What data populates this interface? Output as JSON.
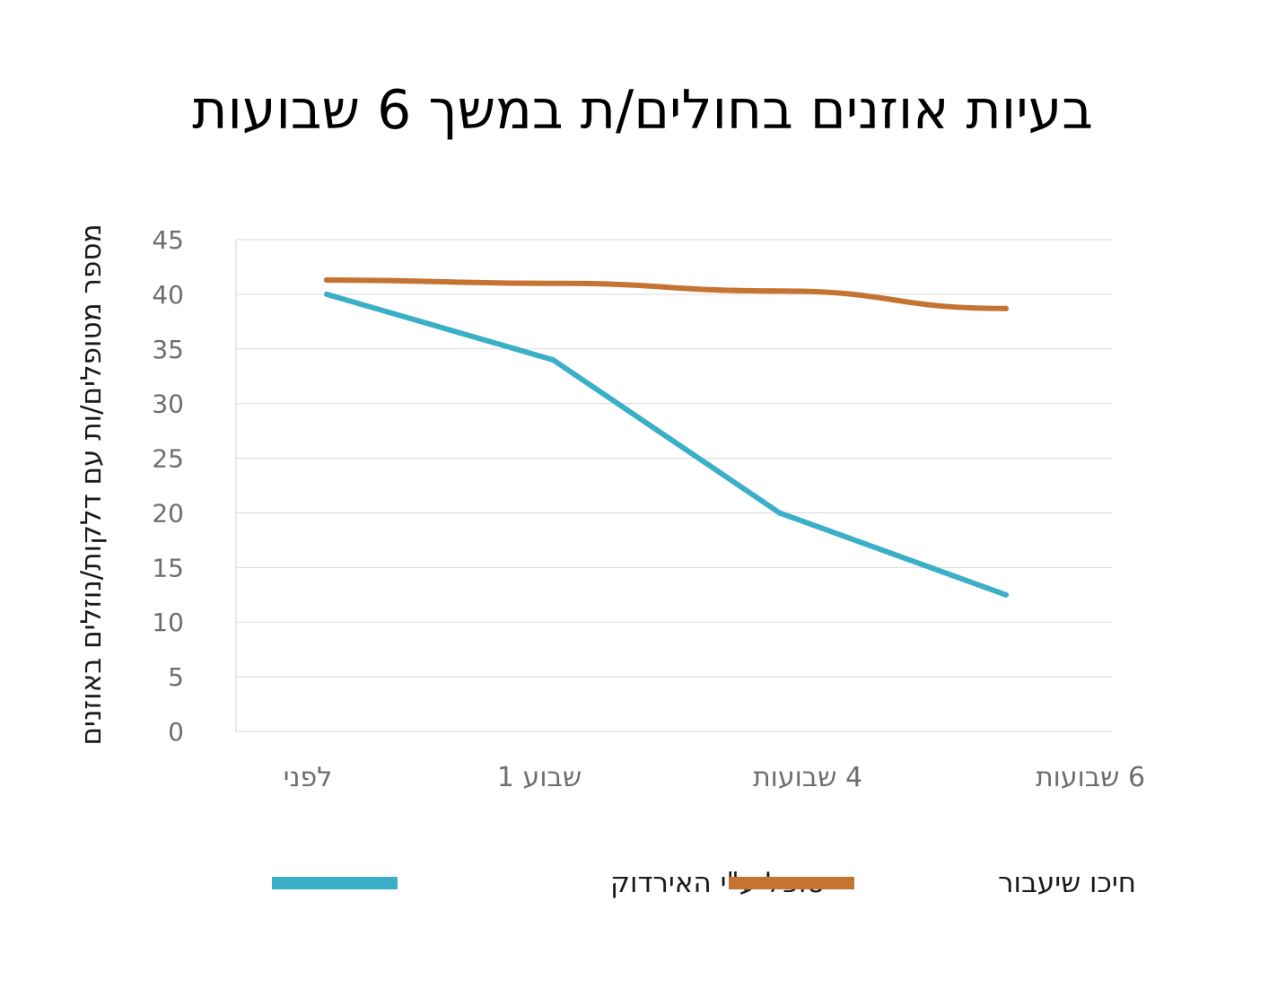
{
  "chart_data": {
    "type": "line",
    "title": "בעיות אוזנים בחולים/ת במשך 6 שבועות",
    "ylabel": "מספר מטופלים/ות  עם דלקות/נוזלים באוזנים",
    "xlabel": "",
    "categories": [
      "לפני",
      "שבוע 1",
      "4  שבועות",
      "6 שבועות"
    ],
    "ylim": [
      0,
      45
    ],
    "yticks": [
      0,
      5,
      10,
      15,
      20,
      25,
      30,
      35,
      40,
      45
    ],
    "grid": true,
    "legend_position": "bottom",
    "series": [
      {
        "name": "טופל ע\"י האירדוק",
        "color": "#3aafc7",
        "values": [
          40,
          34,
          20,
          12.5
        ]
      },
      {
        "name": "חיכו שיעבור",
        "color": "#c47330",
        "values": [
          41.3,
          41,
          40.3,
          38.7
        ]
      }
    ]
  }
}
